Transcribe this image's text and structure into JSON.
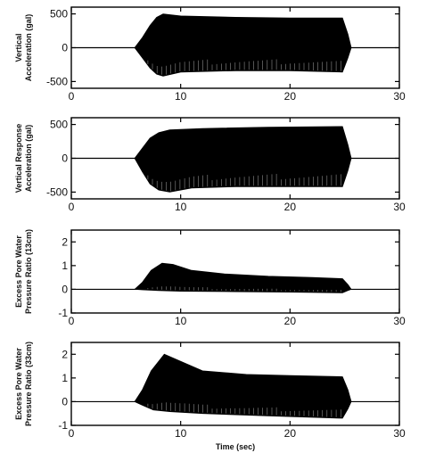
{
  "chart_data": [
    {
      "type": "line",
      "ylabel": [
        "Vertical",
        "Acceleration (gal)"
      ],
      "ylim": [
        -600,
        600
      ],
      "xlim": [
        0,
        30
      ],
      "yticks": [
        "500",
        "0",
        "-500"
      ],
      "ytick_values": [
        500,
        0,
        -500
      ],
      "xticks": [
        "0",
        "10",
        "20",
        "30"
      ],
      "xtick_values": [
        0,
        10,
        20,
        30
      ],
      "series": [
        {
          "style": "oscillation",
          "color": "#000000",
          "baseline": [
            [
              0,
              0
            ],
            [
              30,
              0
            ]
          ],
          "upper": [
            [
              5.8,
              0
            ],
            [
              6.5,
              150
            ],
            [
              7.2,
              330
            ],
            [
              7.8,
              450
            ],
            [
              8.4,
              500
            ],
            [
              10,
              470
            ],
            [
              15,
              450
            ],
            [
              20,
              440
            ],
            [
              24.8,
              440
            ],
            [
              25.3,
              200
            ],
            [
              25.6,
              0
            ]
          ],
          "lower": [
            [
              5.8,
              0
            ],
            [
              6.5,
              -150
            ],
            [
              7.2,
              -300
            ],
            [
              7.8,
              -390
            ],
            [
              8.4,
              -420
            ],
            [
              10,
              -360
            ],
            [
              15,
              -340
            ],
            [
              20,
              -340
            ],
            [
              24.8,
              -360
            ],
            [
              25.3,
              -150
            ],
            [
              25.6,
              0
            ]
          ]
        }
      ]
    },
    {
      "type": "line",
      "ylabel": [
        "Vertical Response",
        "Acceleration (gal)"
      ],
      "ylim": [
        -600,
        600
      ],
      "xlim": [
        0,
        30
      ],
      "yticks": [
        "500",
        "0",
        "-500"
      ],
      "ytick_values": [
        500,
        0,
        -500
      ],
      "xticks": [
        "0",
        "10",
        "20",
        "30"
      ],
      "xtick_values": [
        0,
        10,
        20,
        30
      ],
      "series": [
        {
          "style": "oscillation",
          "color": "#000000",
          "baseline": [
            [
              0,
              0
            ],
            [
              30,
              0
            ]
          ],
          "upper": [
            [
              5.8,
              0
            ],
            [
              6.5,
              150
            ],
            [
              7.2,
              300
            ],
            [
              8,
              380
            ],
            [
              9,
              420
            ],
            [
              12,
              440
            ],
            [
              18,
              460
            ],
            [
              24.8,
              470
            ],
            [
              25.3,
              200
            ],
            [
              25.6,
              0
            ]
          ],
          "lower": [
            [
              5.8,
              0
            ],
            [
              6.5,
              -200
            ],
            [
              7.2,
              -380
            ],
            [
              8,
              -470
            ],
            [
              9,
              -500
            ],
            [
              11,
              -440
            ],
            [
              15,
              -420
            ],
            [
              20,
              -420
            ],
            [
              24.8,
              -420
            ],
            [
              25.3,
              -180
            ],
            [
              25.6,
              0
            ]
          ]
        }
      ]
    },
    {
      "type": "line",
      "ylabel": [
        "Excess Pore Water",
        "Pressure Ratio (13cm)"
      ],
      "ylim": [
        -1,
        2.5
      ],
      "xlim": [
        0,
        30
      ],
      "yticks": [
        "2",
        "1",
        "0",
        "-1"
      ],
      "ytick_values": [
        2,
        1,
        0,
        -1
      ],
      "xticks": [
        "0",
        "10",
        "20",
        "30"
      ],
      "xtick_values": [
        0,
        10,
        20,
        30
      ],
      "series": [
        {
          "style": "oscillation",
          "color": "#000000",
          "baseline": [
            [
              0,
              0
            ],
            [
              30,
              0
            ]
          ],
          "upper": [
            [
              5.8,
              0
            ],
            [
              6.5,
              0.3
            ],
            [
              7.3,
              0.8
            ],
            [
              8.3,
              1.1
            ],
            [
              9.3,
              1.05
            ],
            [
              11,
              0.8
            ],
            [
              14,
              0.65
            ],
            [
              18,
              0.55
            ],
            [
              22,
              0.5
            ],
            [
              24.8,
              0.45
            ],
            [
              25.3,
              0.2
            ],
            [
              25.6,
              0
            ]
          ],
          "lower": [
            [
              5.8,
              0
            ],
            [
              6.5,
              -0.02
            ],
            [
              8,
              -0.05
            ],
            [
              10,
              -0.08
            ],
            [
              15,
              -0.1
            ],
            [
              20,
              -0.12
            ],
            [
              24.8,
              -0.15
            ],
            [
              25.3,
              -0.05
            ],
            [
              25.6,
              0
            ]
          ]
        }
      ]
    },
    {
      "type": "line",
      "ylabel": [
        "Excess Pore Water",
        "Pressure Ratio (33cm)"
      ],
      "ylim": [
        -1,
        2.5
      ],
      "xlim": [
        0,
        30
      ],
      "yticks": [
        "2",
        "1",
        "0",
        "-1"
      ],
      "ytick_values": [
        2,
        1,
        0,
        -1
      ],
      "xticks": [
        "0",
        "10",
        "20",
        "30"
      ],
      "xtick_values": [
        0,
        10,
        20,
        30
      ],
      "xlabel": "Time (sec)",
      "series": [
        {
          "style": "oscillation",
          "color": "#000000",
          "baseline": [
            [
              0,
              0
            ],
            [
              30,
              0
            ]
          ],
          "upper": [
            [
              5.8,
              0
            ],
            [
              6.5,
              0.5
            ],
            [
              7.3,
              1.3
            ],
            [
              8.5,
              2.0
            ],
            [
              10,
              1.7
            ],
            [
              12,
              1.3
            ],
            [
              16,
              1.15
            ],
            [
              20,
              1.1
            ],
            [
              24.8,
              1.05
            ],
            [
              25.3,
              0.5
            ],
            [
              25.6,
              0
            ]
          ],
          "lower": [
            [
              5.8,
              0
            ],
            [
              6.5,
              -0.15
            ],
            [
              7.5,
              -0.35
            ],
            [
              9,
              -0.42
            ],
            [
              12,
              -0.5
            ],
            [
              18,
              -0.6
            ],
            [
              24.8,
              -0.7
            ],
            [
              25.3,
              -0.3
            ],
            [
              25.6,
              0
            ]
          ]
        }
      ]
    }
  ]
}
